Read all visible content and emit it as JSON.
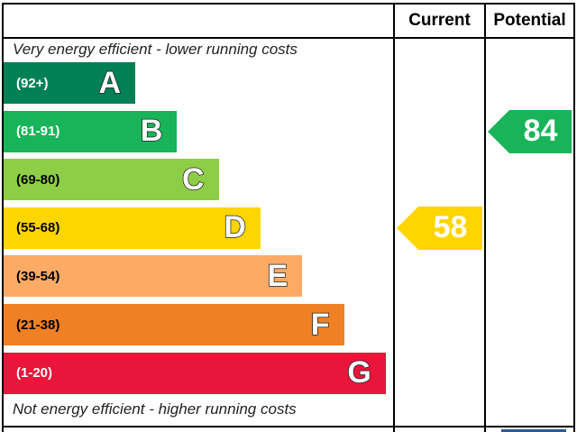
{
  "header": {
    "current_label": "Current",
    "potential_label": "Potential"
  },
  "captions": {
    "top": "Very energy efficient - lower running costs",
    "bottom": "Not energy efficient - higher running costs"
  },
  "chart_data": {
    "type": "bar",
    "categories": [
      "A",
      "B",
      "C",
      "D",
      "E",
      "F",
      "G"
    ],
    "ranges": [
      "(92+)",
      "(81-91)",
      "(69-80)",
      "(55-68)",
      "(39-54)",
      "(21-38)",
      "(1-20)"
    ],
    "band_colors": [
      "#008054",
      "#19b459",
      "#8dce46",
      "#ffd500",
      "#fcaa65",
      "#ef8023",
      "#e9153b"
    ],
    "range_text_colors": [
      "#ffffff",
      "#ffffff",
      "#000000",
      "#000000",
      "#000000",
      "#000000",
      "#ffffff"
    ],
    "current": {
      "value": 58,
      "band": "D",
      "color": "#ffd500"
    },
    "potential": {
      "value": 84,
      "band": "B",
      "color": "#19b459"
    }
  }
}
